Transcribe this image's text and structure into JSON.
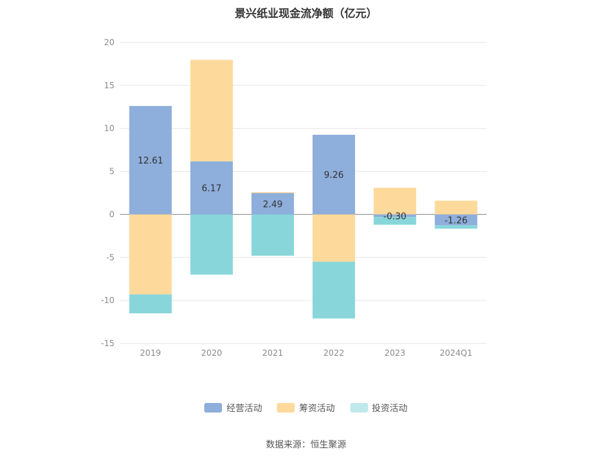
{
  "chart_data": {
    "type": "bar",
    "stacked": true,
    "title": "景兴纸业现金流净额（亿元）",
    "categories": [
      "2019",
      "2020",
      "2021",
      "2022",
      "2023",
      "2024Q1"
    ],
    "series": [
      {
        "name": "经营活动",
        "color": "#8eaedb",
        "values": [
          12.61,
          6.17,
          2.49,
          9.26,
          -0.3,
          -1.26
        ]
      },
      {
        "name": "筹资活动",
        "color": "#fdd99b",
        "values": [
          -9.3,
          11.8,
          0.1,
          -5.5,
          3.1,
          1.6
        ]
      },
      {
        "name": "投资活动",
        "color": "#88d6da",
        "values": [
          -2.2,
          -7.0,
          -4.8,
          -6.6,
          -0.9,
          -0.4
        ]
      }
    ],
    "data_labels": [
      "12.61",
      "6.17",
      "2.49",
      "9.26",
      "-0.30",
      "-1.26"
    ],
    "ylim": [
      -15,
      20
    ],
    "yticks": [
      20,
      15,
      10,
      5,
      0,
      -5,
      -10,
      -15
    ],
    "grid": true,
    "legend_position": "bottom"
  },
  "source": "数据来源：恒生聚源"
}
